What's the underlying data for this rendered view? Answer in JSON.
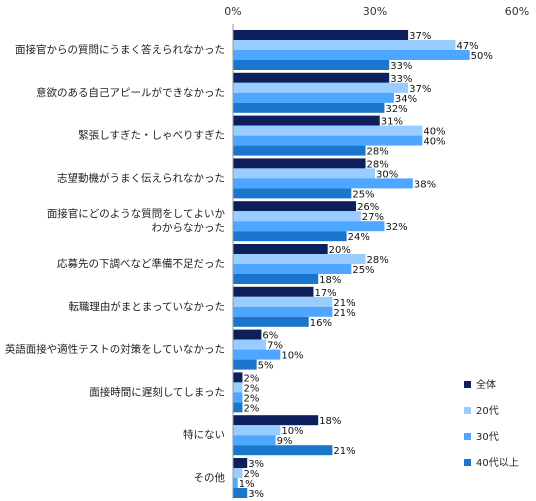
{
  "chart_data": {
    "type": "bar",
    "orientation": "horizontal",
    "xlim": [
      0,
      60
    ],
    "x_ticks": [
      "0%",
      "30%",
      "60%"
    ],
    "grid": false,
    "legend_position": "right",
    "title": "",
    "xlabel": "",
    "ylabel": "",
    "categories": [
      [
        "面接官からの質問にうまく答えられなかった"
      ],
      [
        "意欲のある自己アピールができなかった"
      ],
      [
        "緊張しすぎた・しゃべりすぎた"
      ],
      [
        "志望動機がうまく伝えられなかった"
      ],
      [
        "面接官にどのような質問をしてよいか",
        "わからなかった"
      ],
      [
        "応募先の下調べなど準備不足だった"
      ],
      [
        "転職理由がまとまっていなかった"
      ],
      [
        "英語面接や適性テストの対策をしていなかった"
      ],
      [
        "面接時間に遅刻してしまった"
      ],
      [
        "特にない"
      ],
      [
        "その他"
      ]
    ],
    "series": [
      {
        "name": "全体",
        "color": "#0d1f5c",
        "values": [
          37,
          33,
          31,
          28,
          26,
          20,
          17,
          6,
          2,
          18,
          3
        ]
      },
      {
        "name": "20代",
        "color": "#99ccff",
        "values": [
          47,
          37,
          40,
          30,
          27,
          28,
          21,
          7,
          2,
          10,
          2
        ]
      },
      {
        "name": "30代",
        "color": "#4da6ff",
        "values": [
          50,
          34,
          40,
          38,
          32,
          25,
          21,
          10,
          2,
          9,
          1
        ]
      },
      {
        "name": "40代以上",
        "color": "#1a75cc",
        "values": [
          33,
          32,
          28,
          25,
          24,
          18,
          16,
          5,
          2,
          21,
          3
        ]
      }
    ],
    "value_suffix": "%"
  }
}
